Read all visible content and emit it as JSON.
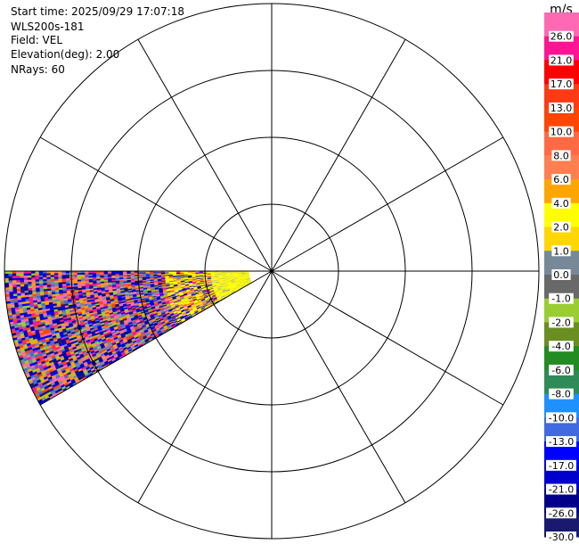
{
  "header": {
    "start_time": "Start time: 2025/09/29 17:07:18",
    "instrument": "WLS200s-181",
    "field": "Field: VEL",
    "elevation": "Elevation(deg): 2.00",
    "nrays": "NRays: 60"
  },
  "colorbar": {
    "unit": "m/s",
    "ticks": [
      "26.0",
      "21.0",
      "17.0",
      "13.0",
      "10.0",
      "8.0",
      "6.0",
      "4.0",
      "2.0",
      "1.0",
      "0.0",
      "-1.0",
      "-2.0",
      "-4.0",
      "-6.0",
      "-8.0",
      "-10.0",
      "-13.0",
      "-17.0",
      "-21.0",
      "-26.0",
      "-30.0"
    ],
    "colors": [
      "#ff69b4",
      "#ff1493",
      "#ff0000",
      "#ff3a14",
      "#ff4500",
      "#ff6a44",
      "#ff7f50",
      "#ffa500",
      "#ffff00",
      "#ffd700",
      "#778899",
      "#696969",
      "#9acd32",
      "#6b8e23",
      "#228b22",
      "#2e8b57",
      "#1e90ff",
      "#4169e1",
      "#0000ff",
      "#0000cd",
      "#00008b",
      "#191970"
    ]
  },
  "chart_data": {
    "type": "heatmap",
    "projection": "polar PPI",
    "field": "VEL",
    "units": "m/s",
    "elevation_deg": 2.0,
    "nrays": 60,
    "range_rings": 4,
    "radial_spokes_deg": [
      0,
      30,
      60,
      90,
      120,
      150,
      180,
      210,
      240,
      270,
      300,
      330
    ],
    "scan_sector_deg": [
      240,
      270
    ],
    "color_range": [
      -30,
      26
    ]
  }
}
